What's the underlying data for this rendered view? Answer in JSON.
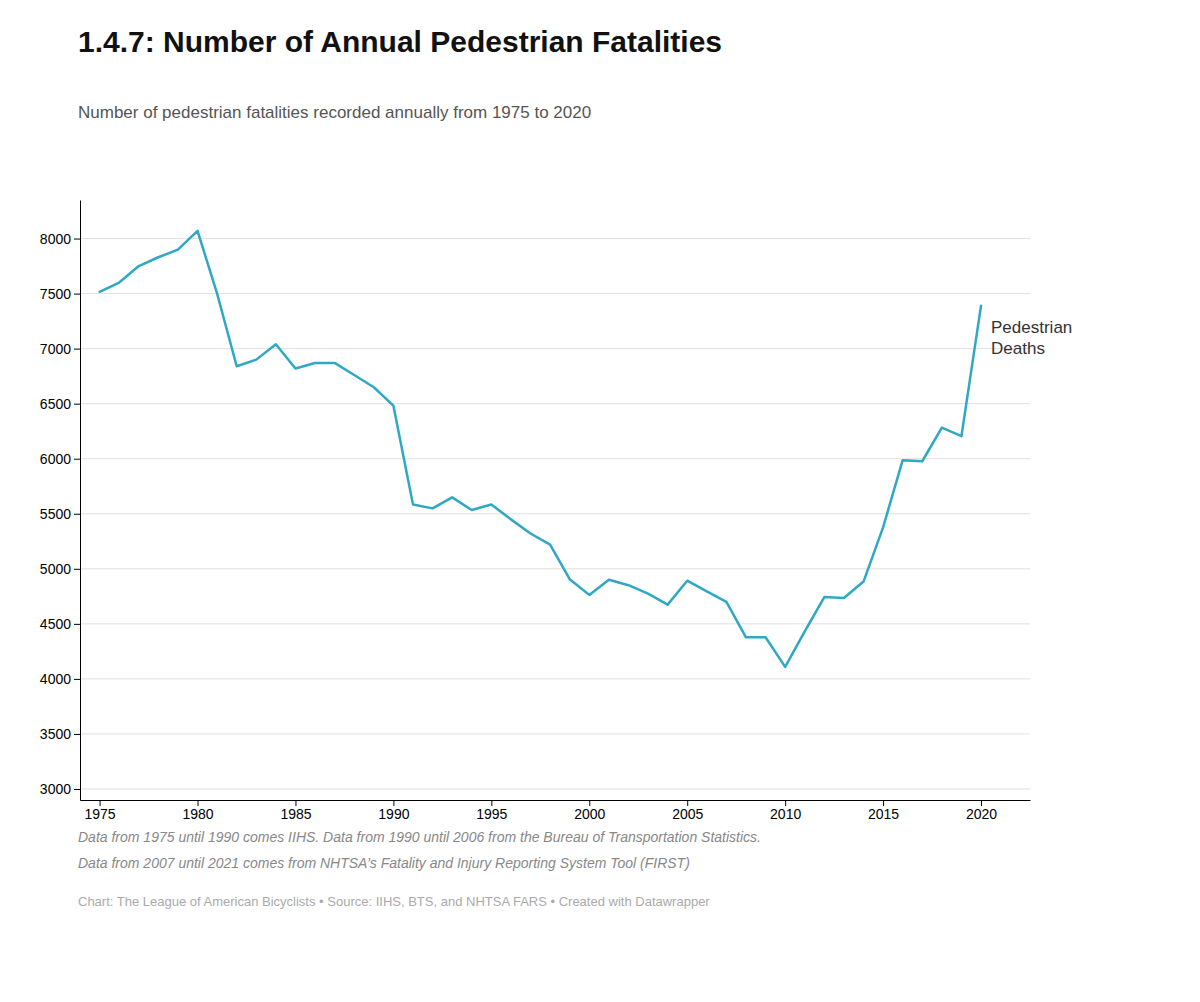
{
  "chart_data": {
    "type": "line",
    "title": "1.4.7: Number of Annual Pedestrian Fatalities",
    "subtitle": "Number of pedestrian fatalities recorded annually from 1975 to 2020",
    "annotations": [
      "Data from 1975 until 1990 comes IIHS. Data from 1990 until 2006 from the Bureau of Transportation Statistics.",
      "Data from 2007 until 2021 comes from NHTSA’s Fatality and Injury Reporting System Tool (FIRST)",
      "Chart: The League of American Bicyclists • Source: IIHS, BTS, and NHTSA FARS • Created with Datawrapper"
    ],
    "x": [
      1975,
      1976,
      1977,
      1978,
      1979,
      1980,
      1981,
      1982,
      1983,
      1984,
      1985,
      1986,
      1987,
      1988,
      1989,
      1990,
      1991,
      1992,
      1993,
      1994,
      1995,
      1996,
      1997,
      1998,
      1999,
      2000,
      2001,
      2002,
      2003,
      2004,
      2005,
      2006,
      2007,
      2008,
      2009,
      2010,
      2011,
      2012,
      2013,
      2014,
      2015,
      2016,
      2017,
      2018,
      2019,
      2020
    ],
    "series": [
      {
        "name": "Pedestrian\nDeaths",
        "color": "#2ea8c5",
        "values": [
          7516,
          7600,
          7750,
          7830,
          7900,
          8070,
          7500,
          6840,
          6900,
          7040,
          6820,
          6870,
          6870,
          6760,
          6649,
          6482,
          5584,
          5549,
          5649,
          5534,
          5584,
          5449,
          5321,
          5220,
          4906,
          4763,
          4901,
          4851,
          4774,
          4675,
          4892,
          4795,
          4699,
          4378,
          4378,
          4109,
          4432,
          4743,
          4735,
          4884,
          5376,
          5987,
          5977,
          6283,
          6205,
          7390
        ]
      }
    ],
    "xlim": [
      1974.0,
      2022.5
    ],
    "xticks": [
      1975,
      1980,
      1985,
      1990,
      1995,
      2000,
      2005,
      2010,
      2015,
      2020
    ],
    "ylim": [
      2900,
      8350
    ],
    "yticks": [
      3000,
      3500,
      4000,
      4500,
      5000,
      5500,
      6000,
      6500,
      7000,
      7500,
      8000
    ],
    "grid": true
  }
}
